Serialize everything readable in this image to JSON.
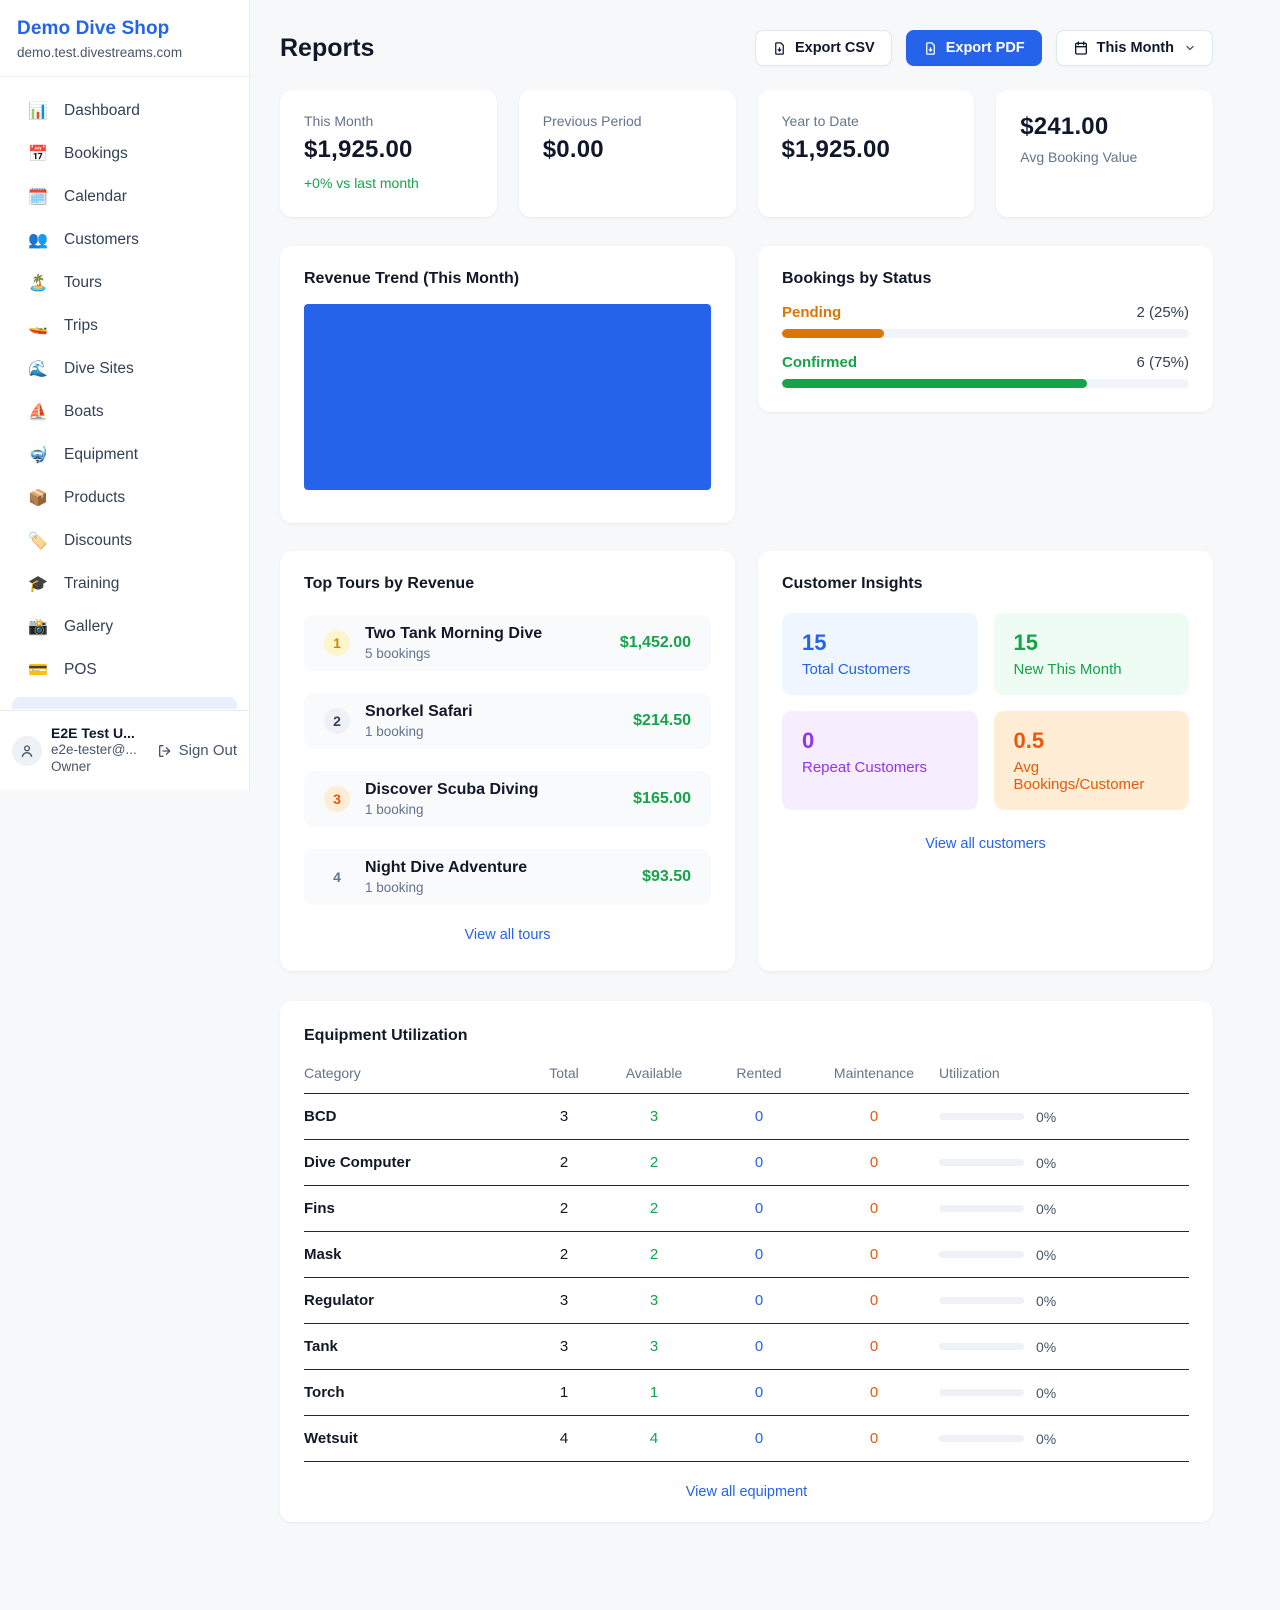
{
  "colors": {
    "accent_blue": "#2563eb",
    "money_green": "#16a34a",
    "pending_orange": "#d97706",
    "maintenance_orange": "#ea580c",
    "repeat_purple": "#9333ea",
    "page_bg": "#f7f8fa"
  },
  "sidebar": {
    "shop_name": "Demo Dive Shop",
    "domain": "demo.test.divestreams.com",
    "items": [
      {
        "icon": "📊",
        "label": "Dashboard"
      },
      {
        "icon": "📅",
        "label": "Bookings"
      },
      {
        "icon": "🗓️",
        "label": "Calendar"
      },
      {
        "icon": "👥",
        "label": "Customers"
      },
      {
        "icon": "🏝️",
        "label": "Tours"
      },
      {
        "icon": "🚤",
        "label": "Trips"
      },
      {
        "icon": "🌊",
        "label": "Dive Sites"
      },
      {
        "icon": "⛵",
        "label": "Boats"
      },
      {
        "icon": "🤿",
        "label": "Equipment"
      },
      {
        "icon": "📦",
        "label": "Products"
      },
      {
        "icon": "🏷️",
        "label": "Discounts"
      },
      {
        "icon": "🎓",
        "label": "Training"
      },
      {
        "icon": "📸",
        "label": "Gallery"
      },
      {
        "icon": "💳",
        "label": "POS"
      }
    ],
    "user": {
      "name": "E2E Test U...",
      "email": "e2e-tester@...",
      "role": "Owner",
      "sign_out": "Sign Out"
    }
  },
  "header": {
    "title": "Reports",
    "export_csv": "Export CSV",
    "export_pdf": "Export PDF",
    "period": "This Month"
  },
  "stats": [
    {
      "label": "This Month",
      "value": "$1,925.00",
      "delta": "+0% vs last month"
    },
    {
      "label": "Previous Period",
      "value": "$0.00"
    },
    {
      "label": "Year to Date",
      "value": "$1,925.00"
    },
    {
      "label": "Avg Booking Value",
      "value": "$241.00"
    }
  ],
  "revenue_trend": {
    "title": "Revenue Trend (This Month)",
    "bar_color": "#2563eb",
    "bar_fill_pct": 100
  },
  "bookings_by_status": {
    "title": "Bookings by Status",
    "rows": [
      {
        "label": "Pending",
        "value": "2 (25%)",
        "pct": 25,
        "color": "#d97706"
      },
      {
        "label": "Confirmed",
        "value": "6 (75%)",
        "pct": 75,
        "color": "#16a34a"
      }
    ]
  },
  "top_tours": {
    "title": "Top Tours by Revenue",
    "rows": [
      {
        "rank": "1",
        "name": "Two Tank Morning Dive",
        "bookings": "5 bookings",
        "amount": "$1,452.00"
      },
      {
        "rank": "2",
        "name": "Snorkel Safari",
        "bookings": "1 booking",
        "amount": "$214.50"
      },
      {
        "rank": "3",
        "name": "Discover Scuba Diving",
        "bookings": "1 booking",
        "amount": "$165.00"
      },
      {
        "rank": "4",
        "name": "Night Dive Adventure",
        "bookings": "1 booking",
        "amount": "$93.50"
      }
    ],
    "view_all": "View all tours"
  },
  "customer_insights": {
    "title": "Customer Insights",
    "tiles": [
      {
        "value": "15",
        "label": "Total Customers",
        "fg": "#2563eb",
        "bg": "#eff6ff"
      },
      {
        "value": "15",
        "label": "New This Month",
        "fg": "#16a34a",
        "bg": "#eefcf3"
      },
      {
        "value": "0",
        "label": "Repeat Customers",
        "fg": "#9333ea",
        "bg": "#f6edfe"
      },
      {
        "value": "0.5",
        "label": "Avg Bookings/Customer",
        "fg": "#ea580c",
        "bg": "#ffedd5"
      }
    ],
    "view_all": "View all customers"
  },
  "equipment": {
    "title": "Equipment Utilization",
    "columns": [
      "Category",
      "Total",
      "Available",
      "Rented",
      "Maintenance",
      "Utilization"
    ],
    "rows": [
      {
        "category": "BCD",
        "total": "3",
        "available": "3",
        "rented": "0",
        "maintenance": "0",
        "utilization": "0%",
        "utilization_pct": 0
      },
      {
        "category": "Dive Computer",
        "total": "2",
        "available": "2",
        "rented": "0",
        "maintenance": "0",
        "utilization": "0%",
        "utilization_pct": 0
      },
      {
        "category": "Fins",
        "total": "2",
        "available": "2",
        "rented": "0",
        "maintenance": "0",
        "utilization": "0%",
        "utilization_pct": 0
      },
      {
        "category": "Mask",
        "total": "2",
        "available": "2",
        "rented": "0",
        "maintenance": "0",
        "utilization": "0%",
        "utilization_pct": 0
      },
      {
        "category": "Regulator",
        "total": "3",
        "available": "3",
        "rented": "0",
        "maintenance": "0",
        "utilization": "0%",
        "utilization_pct": 0
      },
      {
        "category": "Tank",
        "total": "3",
        "available": "3",
        "rented": "0",
        "maintenance": "0",
        "utilization": "0%",
        "utilization_pct": 0
      },
      {
        "category": "Torch",
        "total": "1",
        "available": "1",
        "rented": "0",
        "maintenance": "0",
        "utilization": "0%",
        "utilization_pct": 0
      },
      {
        "category": "Wetsuit",
        "total": "4",
        "available": "4",
        "rented": "0",
        "maintenance": "0",
        "utilization": "0%",
        "utilization_pct": 0
      }
    ],
    "view_all": "View all equipment"
  }
}
